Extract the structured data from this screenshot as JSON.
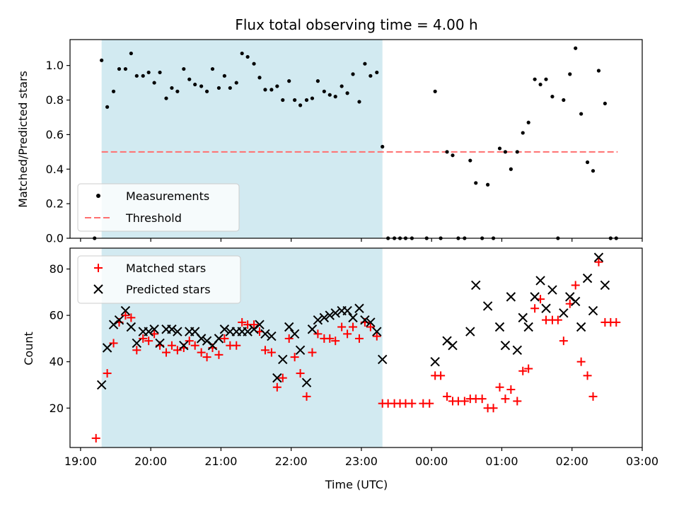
{
  "chart_data": {
    "type": "scatter",
    "title": "Flux total observing time = 4.00 h",
    "xlabel": "Time (UTC)",
    "x_unit": "hours_of_day",
    "x_ticks": [
      {
        "value": 19,
        "label": "19:00"
      },
      {
        "value": 20,
        "label": "20:00"
      },
      {
        "value": 21,
        "label": "21:00"
      },
      {
        "value": 22,
        "label": "22:00"
      },
      {
        "value": 23,
        "label": "23:00"
      },
      {
        "value": 24,
        "label": "00:00"
      },
      {
        "value": 25,
        "label": "01:00"
      },
      {
        "value": 26,
        "label": "02:00"
      },
      {
        "value": 27,
        "label": "03:00"
      }
    ],
    "xlim": [
      18.85,
      27.0
    ],
    "shaded_span": {
      "x_start": 19.3,
      "x_end": 23.3,
      "color": "#add8e6"
    },
    "panels": [
      {
        "ylabel": "Matched/Predicted stars",
        "ylim": [
          0,
          1.15
        ],
        "y_ticks": [
          0.0,
          0.2,
          0.4,
          0.6,
          0.8,
          1.0
        ],
        "y_tick_labels": [
          "0.0",
          "0.2",
          "0.4",
          "0.6",
          "0.8",
          "1.0"
        ],
        "legend": {
          "placement": "lower-left",
          "entries": [
            "Measurements",
            "Threshold"
          ]
        },
        "threshold": {
          "name": "Threshold",
          "y": 0.5,
          "x_start": 19.3,
          "x_end": 26.65,
          "color": "#ff6f6f"
        },
        "series": [
          {
            "name": "Measurements",
            "marker": "dot",
            "color": "#000000",
            "x": [
              19.2,
              19.3,
              19.38,
              19.47,
              19.55,
              19.64,
              19.72,
              19.8,
              19.89,
              19.97,
              20.05,
              20.13,
              20.22,
              20.3,
              20.38,
              20.47,
              20.55,
              20.63,
              20.72,
              20.8,
              20.88,
              20.97,
              21.05,
              21.13,
              21.22,
              21.3,
              21.38,
              21.47,
              21.55,
              21.63,
              21.72,
              21.8,
              21.88,
              21.97,
              22.05,
              22.13,
              22.22,
              22.3,
              22.38,
              22.47,
              22.55,
              22.63,
              22.72,
              22.8,
              22.88,
              22.97,
              23.05,
              23.13,
              23.22,
              23.3,
              23.38,
              23.47,
              23.55,
              23.63,
              23.72,
              23.93,
              24.05,
              24.13,
              24.22,
              24.3,
              24.38,
              24.47,
              24.55,
              24.63,
              24.72,
              24.8,
              24.88,
              24.97,
              25.05,
              25.13,
              25.22,
              25.3,
              25.38,
              25.47,
              25.55,
              25.63,
              25.72,
              25.8,
              25.88,
              25.97,
              26.05,
              26.13,
              26.22,
              26.3,
              26.38,
              26.47,
              26.55,
              26.63
            ],
            "y": [
              0.0,
              1.03,
              0.76,
              0.85,
              0.98,
              0.98,
              1.07,
              0.94,
              0.94,
              0.96,
              0.9,
              0.96,
              0.81,
              0.87,
              0.85,
              0.98,
              0.92,
              0.89,
              0.88,
              0.85,
              0.98,
              0.87,
              0.94,
              0.87,
              0.9,
              1.07,
              1.05,
              1.01,
              0.93,
              0.86,
              0.86,
              0.88,
              0.8,
              0.91,
              0.8,
              0.77,
              0.8,
              0.81,
              0.91,
              0.85,
              0.83,
              0.82,
              0.88,
              0.84,
              0.95,
              0.79,
              1.01,
              0.94,
              0.96,
              0.53,
              0.0,
              0.0,
              0.0,
              0.0,
              0.0,
              0.0,
              0.85,
              0.0,
              0.5,
              0.48,
              0.0,
              0.0,
              0.45,
              0.32,
              0.0,
              0.31,
              0.0,
              0.52,
              0.5,
              0.4,
              0.5,
              0.61,
              0.67,
              0.92,
              0.89,
              0.92,
              0.82,
              0.0,
              0.8,
              0.95,
              1.1,
              0.72,
              0.44,
              0.39,
              0.97,
              0.78,
              0.0,
              0.0
            ]
          }
        ]
      },
      {
        "ylabel": "Count",
        "ylim": [
          3,
          89
        ],
        "y_ticks": [
          20,
          40,
          60,
          80
        ],
        "y_tick_labels": [
          "20",
          "40",
          "60",
          "80"
        ],
        "legend": {
          "placement": "upper-left",
          "entries": [
            "Matched stars",
            "Predicted stars"
          ]
        },
        "series": [
          {
            "name": "Matched stars",
            "marker": "plus",
            "color": "#ff0000",
            "x": [
              19.22,
              19.38,
              19.47,
              19.55,
              19.64,
              19.72,
              19.8,
              19.89,
              19.97,
              20.05,
              20.13,
              20.22,
              20.3,
              20.38,
              20.47,
              20.55,
              20.63,
              20.72,
              20.8,
              20.88,
              20.97,
              21.05,
              21.13,
              21.22,
              21.3,
              21.38,
              21.47,
              21.55,
              21.63,
              21.72,
              21.8,
              21.88,
              21.97,
              22.05,
              22.13,
              22.22,
              22.3,
              22.38,
              22.47,
              22.55,
              22.63,
              22.72,
              22.8,
              22.88,
              22.97,
              23.05,
              23.13,
              23.22,
              23.3,
              23.38,
              23.47,
              23.55,
              23.63,
              23.72,
              23.88,
              23.97,
              24.05,
              24.13,
              24.22,
              24.3,
              24.38,
              24.47,
              24.55,
              24.63,
              24.72,
              24.8,
              24.88,
              24.97,
              25.05,
              25.13,
              25.22,
              25.3,
              25.38,
              25.47,
              25.55,
              25.63,
              25.72,
              25.8,
              25.88,
              25.97,
              26.05,
              26.13,
              26.22,
              26.3,
              26.38,
              26.47,
              26.55,
              26.63
            ],
            "y": [
              7,
              35,
              48,
              57,
              60,
              59,
              45,
              50,
              49,
              52,
              47,
              44,
              47,
              45,
              46,
              49,
              47,
              44,
              42,
              46,
              43,
              50,
              47,
              47,
              57,
              56,
              56,
              53,
              45,
              44,
              29,
              33,
              50,
              42,
              35,
              25,
              44,
              52,
              50,
              50,
              49,
              55,
              52,
              55,
              50,
              57,
              55,
              51,
              22,
              22,
              22,
              22,
              22,
              22,
              22,
              22,
              34,
              34,
              25,
              23,
              23,
              23,
              24,
              24,
              24,
              20,
              20,
              29,
              24,
              28,
              23,
              36,
              37,
              63,
              67,
              58,
              58,
              58,
              49,
              65,
              73,
              40,
              34,
              25,
              83,
              57,
              57,
              57
            ]
          },
          {
            "name": "Predicted stars",
            "marker": "x",
            "color": "#000000",
            "x": [
              19.3,
              19.38,
              19.47,
              19.55,
              19.64,
              19.72,
              19.8,
              19.89,
              19.97,
              20.05,
              20.13,
              20.22,
              20.3,
              20.38,
              20.47,
              20.55,
              20.63,
              20.72,
              20.8,
              20.88,
              20.97,
              21.05,
              21.13,
              21.22,
              21.3,
              21.38,
              21.47,
              21.55,
              21.63,
              21.72,
              21.8,
              21.88,
              21.97,
              22.05,
              22.13,
              22.22,
              22.3,
              22.38,
              22.47,
              22.55,
              22.63,
              22.72,
              22.8,
              22.88,
              22.97,
              23.05,
              23.13,
              23.22,
              23.3,
              24.05,
              24.22,
              24.3,
              24.55,
              24.63,
              24.8,
              24.97,
              25.05,
              25.13,
              25.22,
              25.3,
              25.38,
              25.47,
              25.55,
              25.63,
              25.72,
              25.88,
              25.97,
              26.05,
              26.13,
              26.22,
              26.3,
              26.38,
              26.47
            ],
            "y": [
              30,
              46,
              56,
              58,
              62,
              55,
              48,
              53,
              53,
              54,
              48,
              54,
              54,
              53,
              47,
              53,
              53,
              50,
              49,
              47,
              50,
              54,
              53,
              53,
              53,
              53,
              54,
              56,
              52,
              51,
              33,
              41,
              55,
              52,
              45,
              31,
              54,
              58,
              59,
              60,
              61,
              62,
              62,
              59,
              63,
              58,
              57,
              53,
              41,
              40,
              49,
              47,
              53,
              73,
              64,
              55,
              47,
              68,
              45,
              59,
              55,
              68,
              75,
              63,
              71,
              61,
              68,
              66,
              55,
              76,
              62,
              85,
              73
            ]
          }
        ]
      }
    ]
  }
}
